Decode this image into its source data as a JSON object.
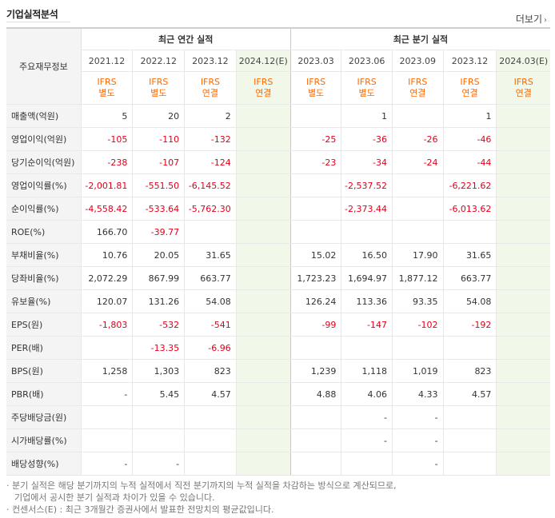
{
  "header": {
    "title": "기업실적분석",
    "more_label": "더보기",
    "more_arrow": "›"
  },
  "table": {
    "corner_label": "주요재무정보",
    "groups": {
      "annual": "최근 연간 실적",
      "quarterly": "최근 분기 실적"
    },
    "periods": [
      "2021.12",
      "2022.12",
      "2023.12",
      "2024.12(E)",
      "2023.03",
      "2023.06",
      "2023.09",
      "2023.12",
      "2024.03(E)"
    ],
    "types": [
      [
        "IFRS",
        "별도"
      ],
      [
        "IFRS",
        "별도"
      ],
      [
        "IFRS",
        "연결"
      ],
      [
        "IFRS",
        "연결"
      ],
      [
        "IFRS",
        "별도"
      ],
      [
        "IFRS",
        "별도"
      ],
      [
        "IFRS",
        "연결"
      ],
      [
        "IFRS",
        "연결"
      ],
      [
        "IFRS",
        "연결"
      ]
    ],
    "rows": [
      {
        "label": "매출액(억원)",
        "values": [
          "5",
          "20",
          "2",
          "",
          "",
          "1",
          "",
          "1",
          ""
        ]
      },
      {
        "label": "영업이익(억원)",
        "values": [
          "-105",
          "-110",
          "-132",
          "",
          "-25",
          "-36",
          "-26",
          "-46",
          ""
        ]
      },
      {
        "label": "당기순이익(억원)",
        "values": [
          "-238",
          "-107",
          "-124",
          "",
          "-23",
          "-34",
          "-24",
          "-44",
          ""
        ]
      },
      {
        "label": "영업이익률(%)",
        "values": [
          "-2,001.81",
          "-551.50",
          "-6,145.52",
          "",
          "",
          "-2,537.52",
          "",
          "-6,221.62",
          ""
        ]
      },
      {
        "label": "순이익률(%)",
        "values": [
          "-4,558.42",
          "-533.64",
          "-5,762.30",
          "",
          "",
          "-2,373.44",
          "",
          "-6,013.62",
          ""
        ]
      },
      {
        "label": "ROE(%)",
        "values": [
          "166.70",
          "-39.77",
          "",
          "",
          "",
          "",
          "",
          "",
          ""
        ]
      },
      {
        "label": "부채비율(%)",
        "values": [
          "10.76",
          "20.05",
          "31.65",
          "",
          "15.02",
          "16.50",
          "17.90",
          "31.65",
          ""
        ]
      },
      {
        "label": "당좌비율(%)",
        "values": [
          "2,072.29",
          "867.99",
          "663.77",
          "",
          "1,723.23",
          "1,694.97",
          "1,877.12",
          "663.77",
          ""
        ]
      },
      {
        "label": "유보율(%)",
        "values": [
          "120.07",
          "131.26",
          "54.08",
          "",
          "126.24",
          "113.36",
          "93.35",
          "54.08",
          ""
        ]
      },
      {
        "label": "EPS(원)",
        "values": [
          "-1,803",
          "-532",
          "-541",
          "",
          "-99",
          "-147",
          "-102",
          "-192",
          ""
        ]
      },
      {
        "label": "PER(배)",
        "values": [
          "",
          "-13.35",
          "-6.96",
          "",
          "",
          "",
          "",
          "",
          ""
        ]
      },
      {
        "label": "BPS(원)",
        "values": [
          "1,258",
          "1,303",
          "823",
          "",
          "1,239",
          "1,118",
          "1,019",
          "823",
          ""
        ]
      },
      {
        "label": "PBR(배)",
        "values": [
          "-",
          "5.45",
          "4.57",
          "",
          "4.88",
          "4.06",
          "4.33",
          "4.57",
          ""
        ]
      },
      {
        "label": "주당배당금(원)",
        "values": [
          "",
          "",
          "",
          "",
          "",
          "-",
          "-",
          "",
          ""
        ]
      },
      {
        "label": "시가배당률(%)",
        "values": [
          "",
          "",
          "",
          "",
          "",
          "-",
          "-",
          "",
          ""
        ]
      },
      {
        "label": "배당성향(%)",
        "values": [
          "-",
          "-",
          "",
          "",
          "",
          "",
          "-",
          "",
          ""
        ]
      }
    ]
  },
  "notes": {
    "line1": "· 분기 실적은 해당 분기까지의 누적 실적에서 직전 분기까지의 누적 실적을 차감하는 방식으로 계산되므로,",
    "line2": "기업에서 공시한 분기 실적과 차이가 있을 수 있습니다.",
    "line3": "· 컨센서스(E) : 최근 3개월간 증권사에서 발표한 전망치의 평균값입니다."
  },
  "colors": {
    "negative": "#e2001a",
    "ifrs": "#ff6a00",
    "estimate_bg": "#f1f8ea",
    "label_bg": "#f4f4f4"
  }
}
